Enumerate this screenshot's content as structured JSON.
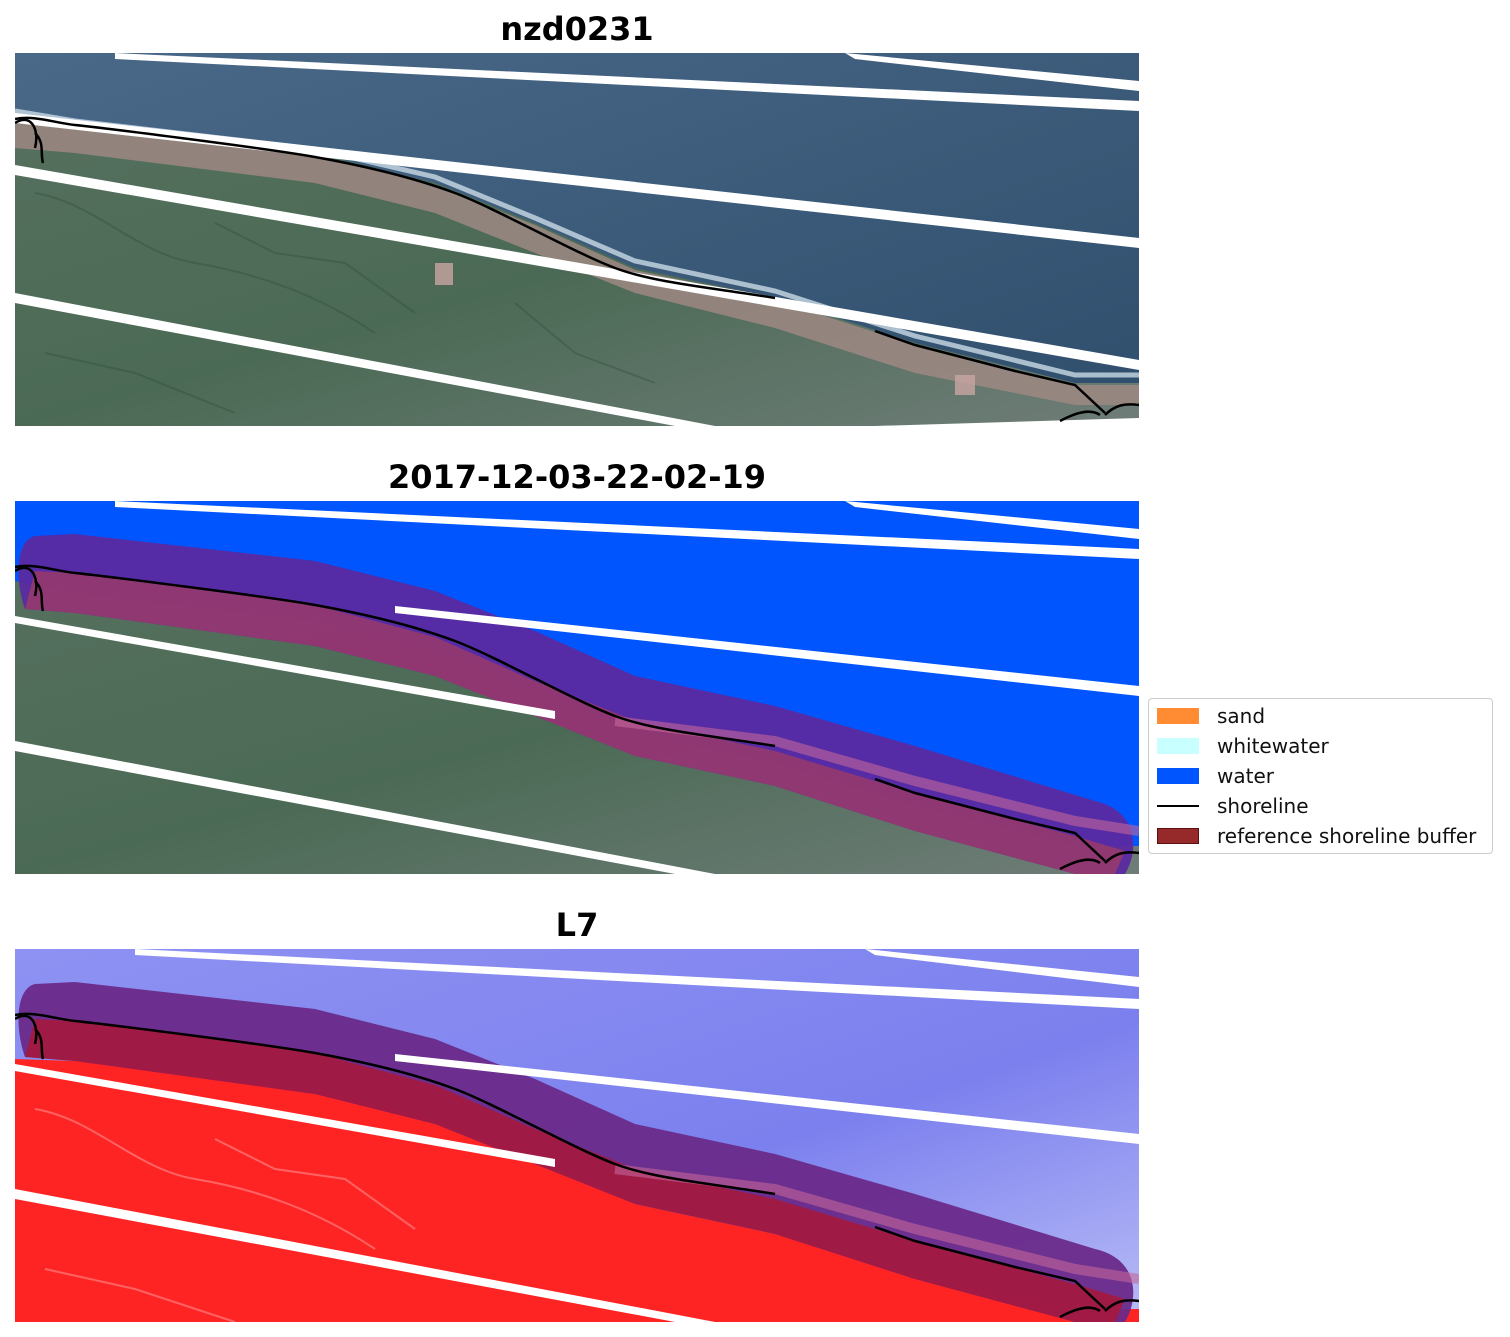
{
  "panels": [
    {
      "title": "nzd0231"
    },
    {
      "title": "2017-12-03-22-02-19"
    },
    {
      "title": "L7"
    }
  ],
  "legend": {
    "items": [
      {
        "label": "sand",
        "color": "#ff8c33"
      },
      {
        "label": "whitewater",
        "color": "#c8ffff"
      },
      {
        "label": "water",
        "color": "#0055ff"
      },
      {
        "label": "shoreline",
        "color": "#000000"
      },
      {
        "label": "reference shoreline buffer",
        "color": "#962a2a"
      }
    ]
  },
  "colors": {
    "ocean_rgb": "#3f5f7c",
    "land_rgb": "#4a6a58",
    "beach_rgb": "#9c8a86",
    "water_class": "#0055ff",
    "buffer": "#6e2a7a",
    "index_water": "#8a8df0",
    "index_land": "#ff2020"
  }
}
